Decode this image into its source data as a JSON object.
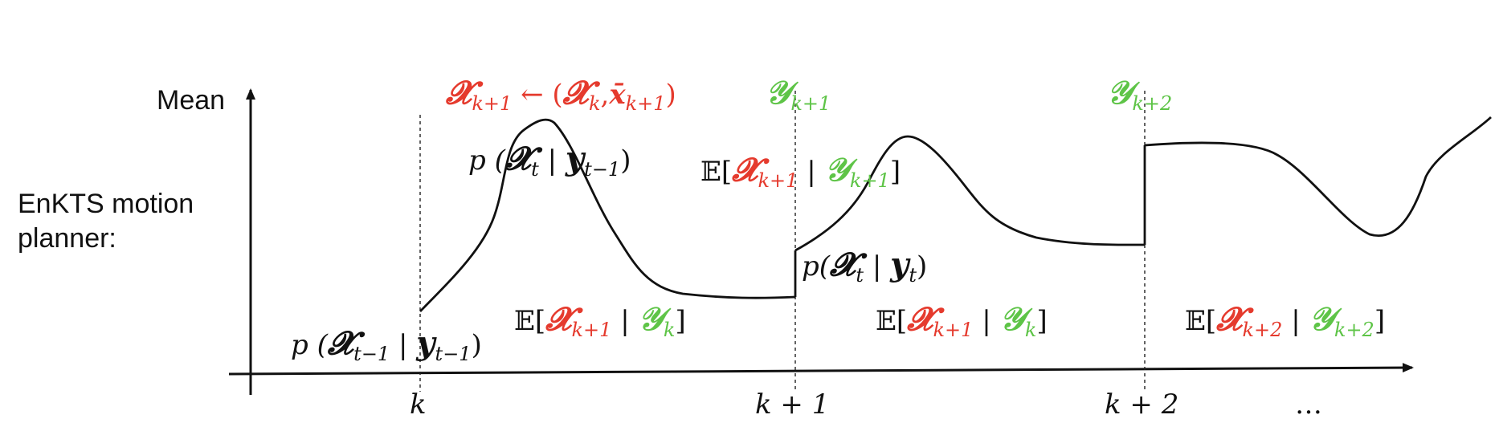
{
  "colors": {
    "red": "#e53a2d",
    "green": "#5ec447",
    "ink": "#111111"
  },
  "axis": {
    "y_label": "Mean",
    "left_label": "EnKTS motion planner:"
  },
  "ticks": {
    "k": "k",
    "k1": "k + 1",
    "k2": "k + 2",
    "ellipsis": "…"
  },
  "labels": {
    "update": {
      "lhs": "𝓧",
      "lhs_sub": "k+1",
      "arrow": "←",
      "open": "(",
      "x": "𝓧",
      "x_sub": "k",
      "comma": ",",
      "xbar": "x̄",
      "xbar_sub": "k+1",
      "close": ")"
    },
    "y_k1": {
      "sym": "𝒴",
      "sub": "k+1"
    },
    "y_k2": {
      "sym": "𝒴",
      "sub": "k+2"
    },
    "prior_prev": {
      "p": "p (",
      "x": "𝓧",
      "x_sub": "t−1",
      "bar": "|",
      "y": "𝒚",
      "y_sub": "t−1",
      "close": ")"
    },
    "prior": {
      "p": "p (",
      "x": "𝓧",
      "x_sub": "t",
      "bar": "|",
      "y": "𝒚",
      "y_sub": "t−1",
      "close": ")"
    },
    "posterior": {
      "p": "p(",
      "x": "𝓧",
      "x_sub": "t",
      "bar": "|",
      "y": "𝒚",
      "y_sub": "t",
      "close": ")"
    },
    "e1": {
      "E": "𝔼[",
      "x": "𝓧",
      "x_sub": "k+1",
      "bar": "|",
      "y": "𝒴",
      "y_sub": "k",
      "close": "]"
    },
    "e2": {
      "E": "𝔼[",
      "x": "𝓧",
      "x_sub": "k+1",
      "bar": "|",
      "y": "𝒴",
      "y_sub": "k+1",
      "close": "]"
    },
    "e3": {
      "E": "𝔼[",
      "x": "𝓧",
      "x_sub": "k+1",
      "bar": "|",
      "y": "𝒴",
      "y_sub": "k",
      "close": "]"
    },
    "e4": {
      "E": "𝔼[",
      "x": "𝓧",
      "x_sub": "k+2",
      "bar": "|",
      "y": "𝒴",
      "y_sub": "k+2",
      "close": "]"
    }
  }
}
